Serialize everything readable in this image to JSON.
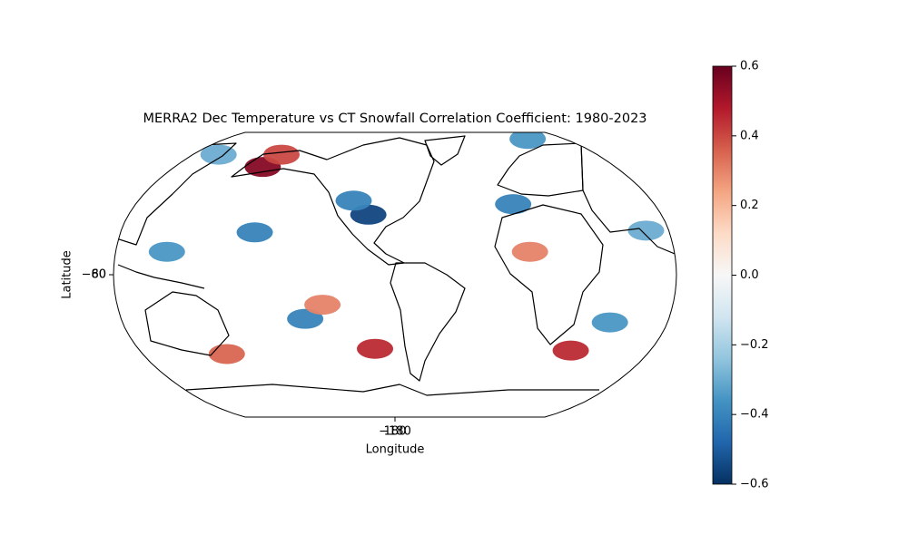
{
  "chart_data": {
    "type": "map",
    "title": "MERRA2 Dec Temperature vs CT Snowfall Correlation Coefficient: 1980-2023",
    "xlabel": "Longitude",
    "ylabel": "Latitude",
    "projection": "robinson",
    "central_longitude": -76,
    "xticks": [
      {
        "value": -180,
        "label": "−180"
      },
      {
        "value": 180,
        "label": "180"
      }
    ],
    "yticks": [
      {
        "value": -80,
        "label": "−80"
      },
      {
        "value": 60,
        "label": "60"
      }
    ],
    "colormap": "RdBu_r",
    "clim": [
      -0.6,
      0.6
    ],
    "cticks": [
      {
        "value": -0.6,
        "label": "−0.6"
      },
      {
        "value": -0.4,
        "label": "−0.4"
      },
      {
        "value": -0.2,
        "label": "−0.2"
      },
      {
        "value": 0,
        "label": "0.0"
      },
      0.2,
      0.4,
      0.6
    ],
    "regions": {
      "lon": [
        176,
        -177,
        -168,
        137,
        -94,
        -105,
        6,
        65,
        -135,
        -90,
        -123,
        164,
        48,
        66,
        89,
        11,
        127
      ],
      "lat": [
        62,
        70,
        24,
        13,
        34,
        42,
        40,
        82,
        -25,
        -42,
        -17,
        -45,
        -43,
        -27,
        25,
        13,
        70
      ],
      "values": [
        0.55,
        0.4,
        -0.4,
        -0.35,
        -0.55,
        -0.4,
        -0.4,
        -0.35,
        -0.4,
        0.45,
        0.3,
        0.35,
        0.45,
        -0.35,
        -0.3,
        0.3,
        -0.3
      ]
    }
  }
}
